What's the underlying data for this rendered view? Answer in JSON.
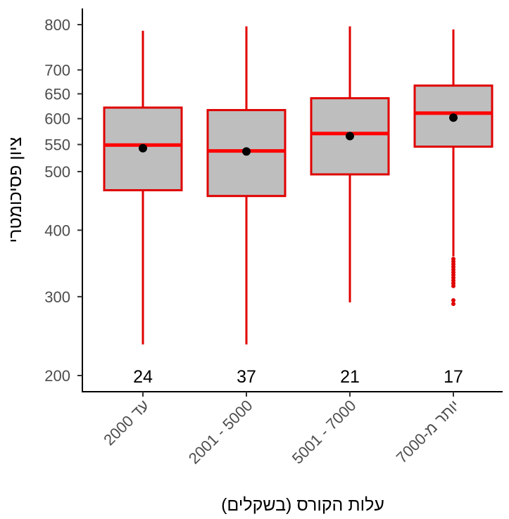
{
  "chart_data": {
    "type": "box",
    "title": "",
    "xlabel": "עלות הקורס (בשקלים)",
    "ylabel": "ציון פסיכומטרי",
    "ylim": [
      200,
      800
    ],
    "y_ticks": [
      200,
      300,
      400,
      500,
      550,
      600,
      650,
      700,
      800
    ],
    "y_scale": "sqrt",
    "grid": false,
    "legend": "none",
    "colors": {
      "box_fill": "#bebebe",
      "box_outline": "#e00000",
      "median": "#ff0000",
      "mean": "#000000",
      "outlier": "#e00000",
      "axis": "#000000"
    },
    "categories": [
      "עד 2000",
      "2001 - 5000",
      "5001 - 7000",
      "יותר מ-7000"
    ],
    "boxes": [
      {
        "category": "עד 2000",
        "whisker_low": 237,
        "q1": 467,
        "median": 549,
        "q3": 622,
        "whisker_high": 786,
        "mean": 543,
        "count_label": "24",
        "outliers": []
      },
      {
        "category": "2001 - 5000",
        "whisker_low": 237,
        "q1": 457,
        "median": 538,
        "q3": 617,
        "whisker_high": 796,
        "mean": 537,
        "count_label": "37",
        "outliers": []
      },
      {
        "category": "5001 - 7000",
        "whisker_low": 292,
        "q1": 495,
        "median": 571,
        "q3": 641,
        "whisker_high": 796,
        "mean": 566,
        "count_label": "21",
        "outliers": []
      },
      {
        "category": "יותר מ-7000",
        "whisker_low": 359,
        "q1": 546,
        "median": 611,
        "q3": 667,
        "whisker_high": 789,
        "mean": 602,
        "count_label": "17",
        "outliers": [
          355,
          351,
          347,
          343,
          339,
          335,
          331,
          327,
          323,
          319,
          315,
          295,
          290
        ]
      }
    ]
  }
}
